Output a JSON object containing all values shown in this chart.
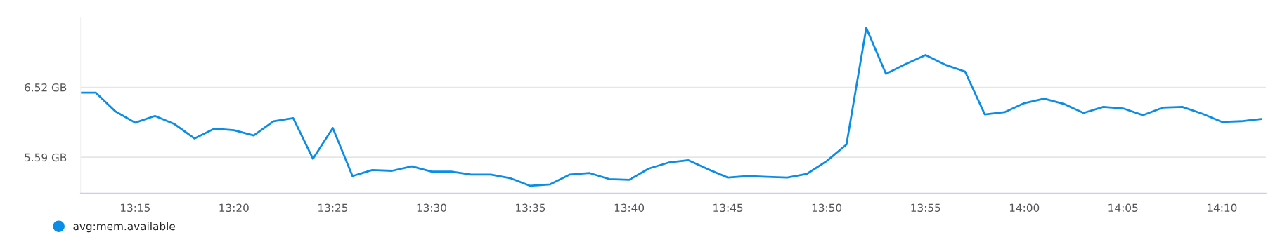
{
  "chart_data": {
    "type": "line",
    "x": [
      13.204,
      13.2167,
      13.2333,
      13.25,
      13.2667,
      13.2833,
      13.3,
      13.3167,
      13.3333,
      13.35,
      13.3667,
      13.3833,
      13.4,
      13.4167,
      13.4333,
      13.45,
      13.4667,
      13.4833,
      13.5,
      13.5167,
      13.5333,
      13.55,
      13.5667,
      13.5833,
      13.6,
      13.6167,
      13.6333,
      13.65,
      13.6667,
      13.6833,
      13.7,
      13.7167,
      13.7333,
      13.75,
      13.7667,
      13.7833,
      13.8,
      13.8167,
      13.8333,
      13.85,
      13.8667,
      13.8833,
      13.9,
      13.9167,
      13.9333,
      13.95,
      13.9667,
      13.9833,
      14.0,
      14.0167,
      14.0333,
      14.05,
      14.0667,
      14.0833,
      14.1,
      14.1167,
      14.1333,
      14.15,
      14.1667,
      14.1833,
      14.2
    ],
    "series": [
      {
        "name": "avg:mem.available",
        "color": "#0b8de6",
        "values": [
          6.45,
          6.45,
          6.2,
          6.05,
          6.14,
          6.03,
          5.84,
          5.97,
          5.95,
          5.88,
          6.07,
          6.11,
          5.57,
          5.98,
          5.34,
          5.42,
          5.41,
          5.47,
          5.4,
          5.4,
          5.36,
          5.36,
          5.31,
          5.21,
          5.23,
          5.36,
          5.38,
          5.3,
          5.29,
          5.44,
          5.52,
          5.55,
          5.43,
          5.32,
          5.34,
          5.33,
          5.32,
          5.37,
          5.54,
          5.76,
          7.31,
          6.7,
          6.83,
          6.95,
          6.82,
          6.73,
          6.16,
          6.19,
          6.31,
          6.37,
          6.3,
          6.18,
          6.26,
          6.24,
          6.15,
          6.25,
          6.26,
          6.17,
          6.06,
          6.07,
          6.1
        ]
      }
    ],
    "xlim": [
      13.204,
      14.2038
    ],
    "xticks": [
      {
        "value": 13.25,
        "label": "13:15"
      },
      {
        "value": 13.3333,
        "label": "13:20"
      },
      {
        "value": 13.4167,
        "label": "13:25"
      },
      {
        "value": 13.5,
        "label": "13:30"
      },
      {
        "value": 13.5833,
        "label": "13:35"
      },
      {
        "value": 13.6667,
        "label": "13:40"
      },
      {
        "value": 13.75,
        "label": "13:45"
      },
      {
        "value": 13.8333,
        "label": "13:50"
      },
      {
        "value": 13.9167,
        "label": "13:55"
      },
      {
        "value": 14.0,
        "label": "14:00"
      },
      {
        "value": 14.0833,
        "label": "14:05"
      },
      {
        "value": 14.1667,
        "label": "14:10"
      }
    ],
    "ylim": [
      5.11,
      7.45
    ],
    "yticks": [
      {
        "value": 5.59,
        "label": "5.59 GB"
      },
      {
        "value": 6.52,
        "label": "6.52 GB"
      }
    ],
    "grid": "y",
    "legend": "bottom left",
    "marker": "none",
    "line_style": "solid"
  }
}
